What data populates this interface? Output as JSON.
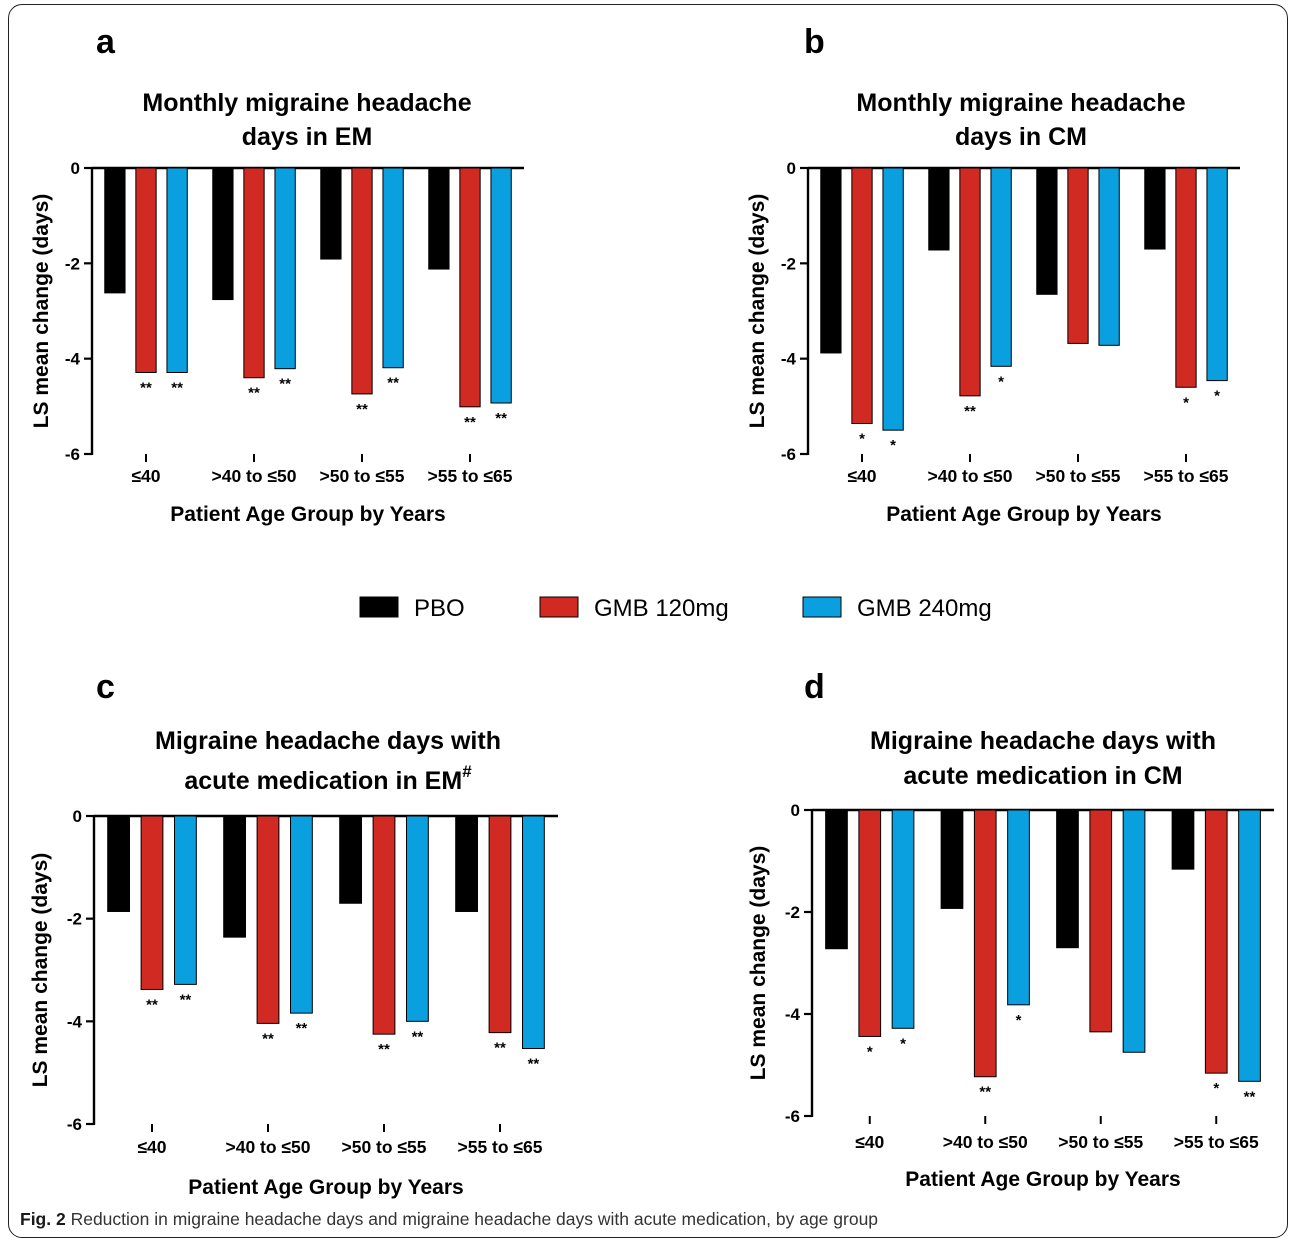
{
  "caption": {
    "label": "Fig. 2",
    "text": "Reduction in migraine headache days and migraine headache days with acute medication, by age group"
  },
  "legend": [
    {
      "name": "PBO",
      "color": "#000000"
    },
    {
      "name": "GMB 120mg",
      "color": "#d12a22"
    },
    {
      "name": "GMB 240mg",
      "color": "#0aa0e0"
    }
  ],
  "chart_data": [
    {
      "panel": "a",
      "type": "bar",
      "title": [
        "Monthly migraine headache",
        "days in EM"
      ],
      "title_sup": "",
      "xlabel": "Patient Age Group by Years",
      "ylabel": "LS mean change (days)",
      "categories": [
        "≤40",
        ">40 to ≤50",
        ">50 to ≤55",
        ">55 to ≤65"
      ],
      "ylim": [
        -6,
        0
      ],
      "yticks": [
        0,
        -2,
        -4,
        -6
      ],
      "series": [
        {
          "name": "PBO",
          "values": [
            -2.62,
            -2.76,
            -1.91,
            -2.12
          ],
          "significance": [
            "",
            "",
            "",
            ""
          ]
        },
        {
          "name": "GMB 120mg",
          "values": [
            -4.29,
            -4.4,
            -4.74,
            -5.01
          ],
          "significance": [
            "**",
            "**",
            "**",
            "**"
          ]
        },
        {
          "name": "GMB 240mg",
          "values": [
            -4.29,
            -4.21,
            -4.19,
            -4.93
          ],
          "significance": [
            "**",
            "**",
            "**",
            "**"
          ]
        }
      ]
    },
    {
      "panel": "b",
      "type": "bar",
      "title": [
        "Monthly migraine headache",
        "days in CM"
      ],
      "title_sup": "",
      "xlabel": "Patient Age Group by Years",
      "ylabel": "LS mean change (days)",
      "categories": [
        "≤40",
        ">40 to ≤50",
        ">50 to ≤55",
        ">55 to ≤65"
      ],
      "ylim": [
        -6,
        0
      ],
      "yticks": [
        0,
        -2,
        -4,
        -6
      ],
      "series": [
        {
          "name": "PBO",
          "values": [
            -3.88,
            -1.72,
            -2.65,
            -1.7
          ],
          "significance": [
            "",
            "",
            "",
            ""
          ]
        },
        {
          "name": "GMB 120mg",
          "values": [
            -5.36,
            -4.78,
            -3.68,
            -4.6
          ],
          "significance": [
            "*",
            "**",
            "",
            "*"
          ]
        },
        {
          "name": "GMB 240mg",
          "values": [
            -5.5,
            -4.16,
            -3.72,
            -4.46
          ],
          "significance": [
            "*",
            "*",
            "",
            "*"
          ]
        }
      ]
    },
    {
      "panel": "c",
      "type": "bar",
      "title": [
        "Migraine headache days with",
        "acute medication in EM"
      ],
      "title_sup": "#",
      "xlabel": "Patient Age Group by Years",
      "ylabel": "LS mean change (days)",
      "categories": [
        "≤40",
        ">40 to ≤50",
        ">50 to ≤55",
        ">55 to ≤65"
      ],
      "ylim": [
        -6,
        0
      ],
      "yticks": [
        0,
        -2,
        -4,
        -6
      ],
      "series": [
        {
          "name": "PBO",
          "values": [
            -1.86,
            -2.36,
            -1.7,
            -1.86
          ],
          "significance": [
            "",
            "",
            "",
            ""
          ]
        },
        {
          "name": "GMB 120mg",
          "values": [
            -3.38,
            -4.04,
            -4.25,
            -4.22
          ],
          "significance": [
            "**",
            "**",
            "**",
            "**"
          ]
        },
        {
          "name": "GMB 240mg",
          "values": [
            -3.28,
            -3.84,
            -4.0,
            -4.53
          ],
          "significance": [
            "**",
            "**",
            "**",
            "**"
          ]
        }
      ]
    },
    {
      "panel": "d",
      "type": "bar",
      "title": [
        "Migraine headache days with",
        "acute medication in CM"
      ],
      "title_sup": "",
      "xlabel": "Patient Age Group by Years",
      "ylabel": "LS mean change (days)",
      "categories": [
        "≤40",
        ">40 to ≤50",
        ">50 to ≤55",
        ">55 to ≤65"
      ],
      "ylim": [
        -6,
        0
      ],
      "yticks": [
        0,
        -2,
        -4,
        -6
      ],
      "series": [
        {
          "name": "PBO",
          "values": [
            -2.72,
            -1.93,
            -2.7,
            -1.16
          ],
          "significance": [
            "",
            "",
            "",
            ""
          ]
        },
        {
          "name": "GMB 120mg",
          "values": [
            -4.44,
            -5.23,
            -4.35,
            -5.16
          ],
          "significance": [
            "*",
            "**",
            "",
            "*"
          ]
        },
        {
          "name": "GMB 240mg",
          "values": [
            -4.28,
            -3.82,
            -4.75,
            -5.32
          ],
          "significance": [
            "*",
            "*",
            "",
            "**"
          ]
        }
      ]
    }
  ]
}
